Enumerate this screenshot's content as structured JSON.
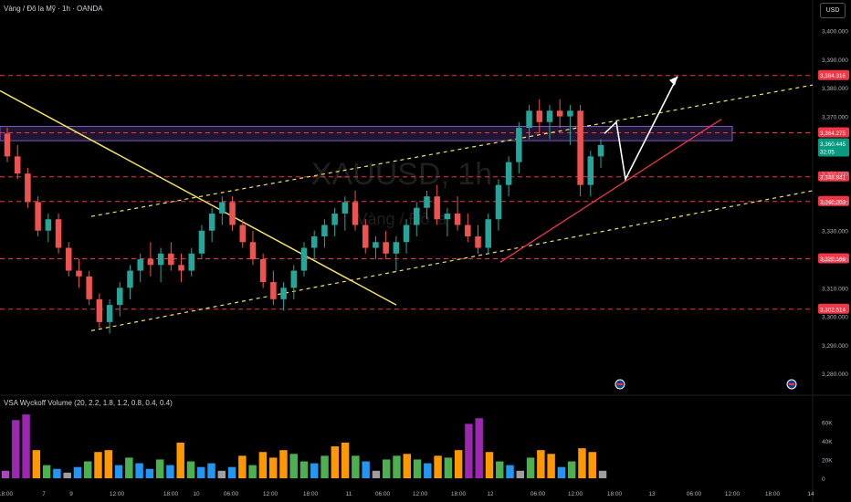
{
  "header": {
    "title": "Vàng / Đô la Mỹ · 1h · OANDA"
  },
  "currency": "USD",
  "watermark": {
    "symbol": "XAUUSD, 1h",
    "name": "Vàng / Đô la"
  },
  "volume_header": "VSA Wyckoff Volume (20, 2.2, 1.8, 1.2, 0.8, 0.4, 0.4)",
  "colors": {
    "bg": "#000000",
    "up": "#26a69a",
    "down": "#ef5350",
    "level": "#f23645",
    "zone": "#7e57c2",
    "trend": "#f7e463",
    "channel": "#f7e463",
    "support": "#f23645",
    "projection": "#ffffff"
  },
  "chart_data": [
    {
      "type": "candlestick",
      "title": "Vàng / Đô la Mỹ · 1h · OANDA",
      "ylim": [
        3274,
        3405
      ],
      "y_ticks": [
        "3,400.000",
        "3,390.000",
        "3,380.000",
        "3,370.000",
        "3,360.000",
        "3,350.000",
        "3,340.000",
        "3,330.000",
        "3,320.000",
        "3,310.000",
        "3,300.000",
        "3,290.000",
        "3,280.000"
      ],
      "x_ticks": [
        "18:00",
        "7",
        "9",
        "12:00",
        "18:00",
        "10",
        "06:00",
        "12:00",
        "18:00",
        "11",
        "06:00",
        "12:00",
        "18:00",
        "12",
        "06:00",
        "12:00",
        "18:00",
        "13",
        "06:00",
        "12:00",
        "18:00",
        "14"
      ],
      "last_price": "3,360.445",
      "countdown": "32:05",
      "levels": [
        {
          "label": "3,384.316",
          "value": 3384.316
        },
        {
          "label": "3,364.275",
          "value": 3364.275
        },
        {
          "label": "3,348.841",
          "value": 3348.841
        },
        {
          "label": "3,340.203",
          "value": 3340.203
        },
        {
          "label": "3,320.166",
          "value": 3320.166
        },
        {
          "label": "3,302.514",
          "value": 3302.514
        }
      ],
      "zone": [
        3361.5,
        3366.5
      ],
      "candles": [
        [
          3364,
          3366,
          3354,
          3356
        ],
        [
          3356,
          3360,
          3348,
          3350
        ],
        [
          3350,
          3352,
          3338,
          3340
        ],
        [
          3340,
          3342,
          3328,
          3330
        ],
        [
          3330,
          3336,
          3326,
          3334
        ],
        [
          3334,
          3336,
          3322,
          3324
        ],
        [
          3324,
          3326,
          3314,
          3316
        ],
        [
          3316,
          3320,
          3310,
          3314
        ],
        [
          3314,
          3316,
          3304,
          3306
        ],
        [
          3306,
          3308,
          3296,
          3298
        ],
        [
          3298,
          3306,
          3294,
          3304
        ],
        [
          3304,
          3312,
          3300,
          3310
        ],
        [
          3310,
          3318,
          3306,
          3316
        ],
        [
          3316,
          3322,
          3312,
          3320
        ],
        [
          3320,
          3326,
          3314,
          3318
        ],
        [
          3318,
          3324,
          3312,
          3322
        ],
        [
          3322,
          3326,
          3316,
          3318
        ],
        [
          3318,
          3322,
          3312,
          3316
        ],
        [
          3316,
          3324,
          3314,
          3322
        ],
        [
          3322,
          3332,
          3320,
          3330
        ],
        [
          3330,
          3338,
          3326,
          3336
        ],
        [
          3336,
          3342,
          3332,
          3340
        ],
        [
          3340,
          3342,
          3330,
          3332
        ],
        [
          3332,
          3334,
          3324,
          3326
        ],
        [
          3326,
          3330,
          3318,
          3320
        ],
        [
          3320,
          3322,
          3310,
          3312
        ],
        [
          3312,
          3316,
          3304,
          3306
        ],
        [
          3306,
          3312,
          3302,
          3310
        ],
        [
          3310,
          3318,
          3306,
          3316
        ],
        [
          3316,
          3326,
          3314,
          3324
        ],
        [
          3324,
          3330,
          3320,
          3328
        ],
        [
          3328,
          3334,
          3324,
          3332
        ],
        [
          3332,
          3338,
          3328,
          3336
        ],
        [
          3336,
          3342,
          3330,
          3340
        ],
        [
          3340,
          3344,
          3330,
          3332
        ],
        [
          3332,
          3334,
          3322,
          3324
        ],
        [
          3324,
          3328,
          3320,
          3326
        ],
        [
          3326,
          3330,
          3320,
          3322
        ],
        [
          3322,
          3328,
          3316,
          3326
        ],
        [
          3326,
          3334,
          3322,
          3332
        ],
        [
          3332,
          3340,
          3328,
          3338
        ],
        [
          3338,
          3344,
          3334,
          3342
        ],
        [
          3342,
          3346,
          3332,
          3334
        ],
        [
          3334,
          3338,
          3328,
          3336
        ],
        [
          3336,
          3342,
          3330,
          3332
        ],
        [
          3332,
          3336,
          3326,
          3328
        ],
        [
          3328,
          3332,
          3322,
          3324
        ],
        [
          3324,
          3336,
          3322,
          3334
        ],
        [
          3334,
          3348,
          3330,
          3346
        ],
        [
          3346,
          3356,
          3342,
          3354
        ],
        [
          3354,
          3368,
          3350,
          3366
        ],
        [
          3366,
          3374,
          3362,
          3372
        ],
        [
          3372,
          3376,
          3364,
          3368
        ],
        [
          3368,
          3374,
          3362,
          3372
        ],
        [
          3372,
          3376,
          3366,
          3370
        ],
        [
          3370,
          3374,
          3360,
          3372
        ],
        [
          3372,
          3374,
          3342,
          3346
        ],
        [
          3346,
          3358,
          3342,
          3356
        ],
        [
          3356,
          3362,
          3352,
          3360
        ]
      ],
      "volume_ticks": [
        "60K",
        "40K",
        "20K",
        "0"
      ],
      "volume_ylim": [
        0,
        72000
      ],
      "volumes": [
        {
          "v": 8000,
          "c": "#ab47bc"
        },
        {
          "v": 62000,
          "c": "#9c27b0"
        },
        {
          "v": 68000,
          "c": "#9c27b0"
        },
        {
          "v": 30000,
          "c": "#ff9800"
        },
        {
          "v": 14000,
          "c": "#4caf50"
        },
        {
          "v": 10000,
          "c": "#2196f3"
        },
        {
          "v": 6000,
          "c": "#9e9e9e"
        },
        {
          "v": 12000,
          "c": "#2196f3"
        },
        {
          "v": 18000,
          "c": "#4caf50"
        },
        {
          "v": 28000,
          "c": "#ff9800"
        },
        {
          "v": 30000,
          "c": "#ff9800"
        },
        {
          "v": 14000,
          "c": "#2196f3"
        },
        {
          "v": 22000,
          "c": "#4caf50"
        },
        {
          "v": 16000,
          "c": "#2196f3"
        },
        {
          "v": 10000,
          "c": "#2196f3"
        },
        {
          "v": 20000,
          "c": "#4caf50"
        },
        {
          "v": 14000,
          "c": "#2196f3"
        },
        {
          "v": 38000,
          "c": "#ff9800"
        },
        {
          "v": 18000,
          "c": "#4caf50"
        },
        {
          "v": 12000,
          "c": "#2196f3"
        },
        {
          "v": 16000,
          "c": "#2196f3"
        },
        {
          "v": 8000,
          "c": "#9e9e9e"
        },
        {
          "v": 12000,
          "c": "#2196f3"
        },
        {
          "v": 24000,
          "c": "#ff9800"
        },
        {
          "v": 14000,
          "c": "#4caf50"
        },
        {
          "v": 28000,
          "c": "#ff9800"
        },
        {
          "v": 22000,
          "c": "#ff9800"
        },
        {
          "v": 30000,
          "c": "#ff9800"
        },
        {
          "v": 26000,
          "c": "#4caf50"
        },
        {
          "v": 18000,
          "c": "#4caf50"
        },
        {
          "v": 16000,
          "c": "#2196f3"
        },
        {
          "v": 24000,
          "c": "#4caf50"
        },
        {
          "v": 34000,
          "c": "#ff9800"
        },
        {
          "v": 38000,
          "c": "#ff9800"
        },
        {
          "v": 24000,
          "c": "#4caf50"
        },
        {
          "v": 18000,
          "c": "#2196f3"
        },
        {
          "v": 8000,
          "c": "#9e9e9e"
        },
        {
          "v": 20000,
          "c": "#4caf50"
        },
        {
          "v": 24000,
          "c": "#4caf50"
        },
        {
          "v": 26000,
          "c": "#ff9800"
        },
        {
          "v": 20000,
          "c": "#4caf50"
        },
        {
          "v": 16000,
          "c": "#2196f3"
        },
        {
          "v": 24000,
          "c": "#ff9800"
        },
        {
          "v": 22000,
          "c": "#4caf50"
        },
        {
          "v": 30000,
          "c": "#ff9800"
        },
        {
          "v": 58000,
          "c": "#9c27b0"
        },
        {
          "v": 64000,
          "c": "#9c27b0"
        },
        {
          "v": 28000,
          "c": "#ff9800"
        },
        {
          "v": 18000,
          "c": "#4caf50"
        },
        {
          "v": 14000,
          "c": "#2196f3"
        },
        {
          "v": 8000,
          "c": "#9e9e9e"
        },
        {
          "v": 22000,
          "c": "#4caf50"
        },
        {
          "v": 30000,
          "c": "#ff9800"
        },
        {
          "v": 26000,
          "c": "#ff9800"
        },
        {
          "v": 12000,
          "c": "#2196f3"
        },
        {
          "v": 18000,
          "c": "#4caf50"
        },
        {
          "v": 32000,
          "c": "#ff9800"
        },
        {
          "v": 28000,
          "c": "#ff9800"
        },
        {
          "v": 8000,
          "c": "#9e9e9e"
        }
      ]
    }
  ]
}
